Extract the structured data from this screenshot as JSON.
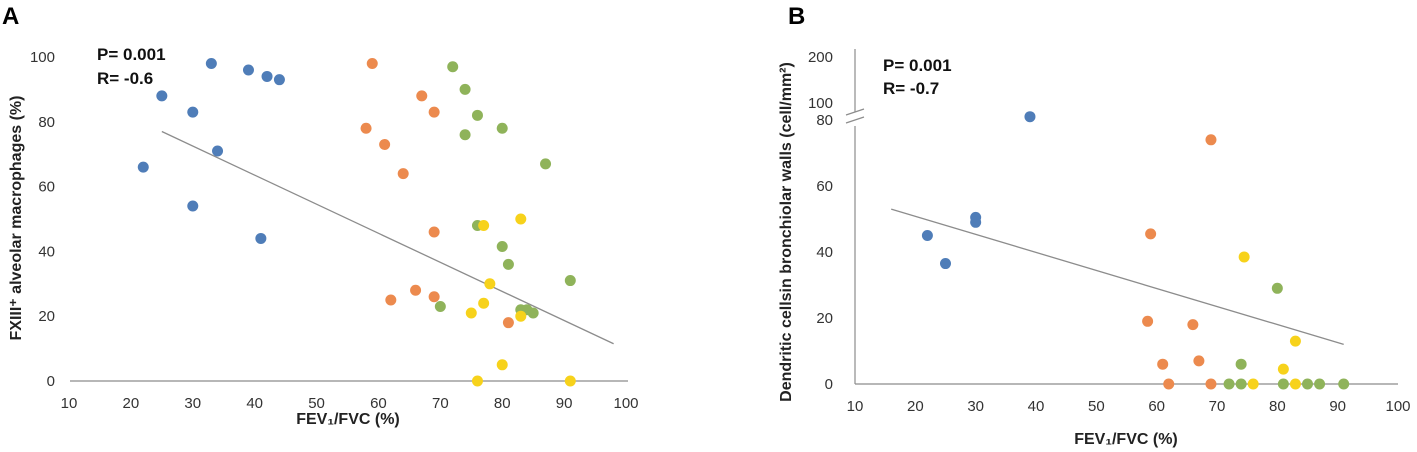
{
  "colors": {
    "blue": "#4f7db8",
    "orange": "#ec8a4e",
    "green": "#8fb35a",
    "yellow": "#f7d21b",
    "axis": "#8c8c8c",
    "trend": "#8c8c8c"
  },
  "chart_data": [
    {
      "panel": "A",
      "type": "scatter",
      "xlabel": "FEV₁/FVC (%)",
      "ylabel": "FXIII⁺ alveolar macrophages (%)",
      "xlim": [
        10,
        100
      ],
      "ylim": [
        0,
        100
      ],
      "x_ticks": [
        "10",
        "20",
        "30",
        "40",
        "50",
        "60",
        "70",
        "80",
        "90",
        "100"
      ],
      "y_ticks": [
        "0",
        "20",
        "40",
        "60",
        "80",
        "100"
      ],
      "stats": {
        "p": "P= 0.001",
        "r": "R= -0.6"
      },
      "trendline": {
        "x1": 25,
        "y1": 77,
        "x2": 98,
        "y2": 11.5
      },
      "series": [
        {
          "name": "blue",
          "color": "#4f7db8",
          "points": [
            [
              22,
              66
            ],
            [
              25,
              88
            ],
            [
              30,
              83
            ],
            [
              30,
              54
            ],
            [
              33,
              98
            ],
            [
              34,
              71
            ],
            [
              39,
              96
            ],
            [
              41,
              44
            ],
            [
              42,
              94
            ],
            [
              44,
              93
            ]
          ]
        },
        {
          "name": "orange",
          "color": "#ec8a4e",
          "points": [
            [
              58,
              78
            ],
            [
              59,
              98
            ],
            [
              61,
              73
            ],
            [
              62,
              25
            ],
            [
              64,
              64
            ],
            [
              66,
              28
            ],
            [
              67,
              88
            ],
            [
              69,
              83
            ],
            [
              69,
              46
            ],
            [
              69,
              26
            ],
            [
              81,
              18
            ]
          ]
        },
        {
          "name": "green",
          "color": "#8fb35a",
          "points": [
            [
              70,
              23
            ],
            [
              72,
              97
            ],
            [
              74,
              90
            ],
            [
              74,
              76
            ],
            [
              76,
              82
            ],
            [
              76,
              48
            ],
            [
              80,
              78
            ],
            [
              80,
              41.5
            ],
            [
              81,
              36
            ],
            [
              83,
              22
            ],
            [
              84,
              22
            ],
            [
              85,
              21
            ],
            [
              87,
              67
            ],
            [
              91,
              31
            ]
          ]
        },
        {
          "name": "yellow",
          "color": "#f7d21b",
          "points": [
            [
              75,
              21
            ],
            [
              76,
              0
            ],
            [
              77,
              48
            ],
            [
              77,
              24
            ],
            [
              78,
              30
            ],
            [
              80,
              5
            ],
            [
              83,
              50
            ],
            [
              83,
              20
            ],
            [
              91,
              0
            ]
          ]
        }
      ]
    },
    {
      "panel": "B",
      "type": "scatter",
      "xlabel": "FEV₁/FVC (%)",
      "ylabel": "Dendritic cellsin bronchiolar walls (cell/mm²)",
      "xlim": [
        10,
        100
      ],
      "ylim": [
        0,
        80
      ],
      "y_break_ticks": [
        "100",
        "200"
      ],
      "x_ticks": [
        "10",
        "20",
        "30",
        "40",
        "50",
        "60",
        "70",
        "80",
        "90",
        "100"
      ],
      "y_ticks": [
        "0",
        "20",
        "40",
        "60",
        "80"
      ],
      "stats": {
        "p": "P= 0.001",
        "r": "R= -0.7"
      },
      "trendline": {
        "x1": 16,
        "y1": 53,
        "x2": 91,
        "y2": 12
      },
      "series": [
        {
          "name": "blue",
          "color": "#4f7db8",
          "points": [
            [
              22,
              45
            ],
            [
              25,
              36.5
            ],
            [
              30,
              50.5
            ],
            [
              30,
              49
            ],
            [
              39,
              81
            ]
          ]
        },
        {
          "name": "orange",
          "color": "#ec8a4e",
          "points": [
            [
              58.5,
              19
            ],
            [
              59,
              45.5
            ],
            [
              61,
              6
            ],
            [
              62,
              0
            ],
            [
              66,
              18
            ],
            [
              67,
              7
            ],
            [
              69,
              0
            ],
            [
              69,
              74
            ]
          ]
        },
        {
          "name": "green",
          "color": "#8fb35a",
          "points": [
            [
              72,
              0
            ],
            [
              74,
              6
            ],
            [
              74,
              0
            ],
            [
              80,
              29
            ],
            [
              81,
              0
            ],
            [
              85,
              0
            ],
            [
              87,
              0
            ],
            [
              91,
              0
            ]
          ]
        },
        {
          "name": "yellow",
          "color": "#f7d21b",
          "points": [
            [
              74.5,
              38.5
            ],
            [
              76,
              0
            ],
            [
              81,
              4.5
            ],
            [
              83,
              13
            ],
            [
              83,
              0
            ]
          ]
        }
      ]
    }
  ]
}
